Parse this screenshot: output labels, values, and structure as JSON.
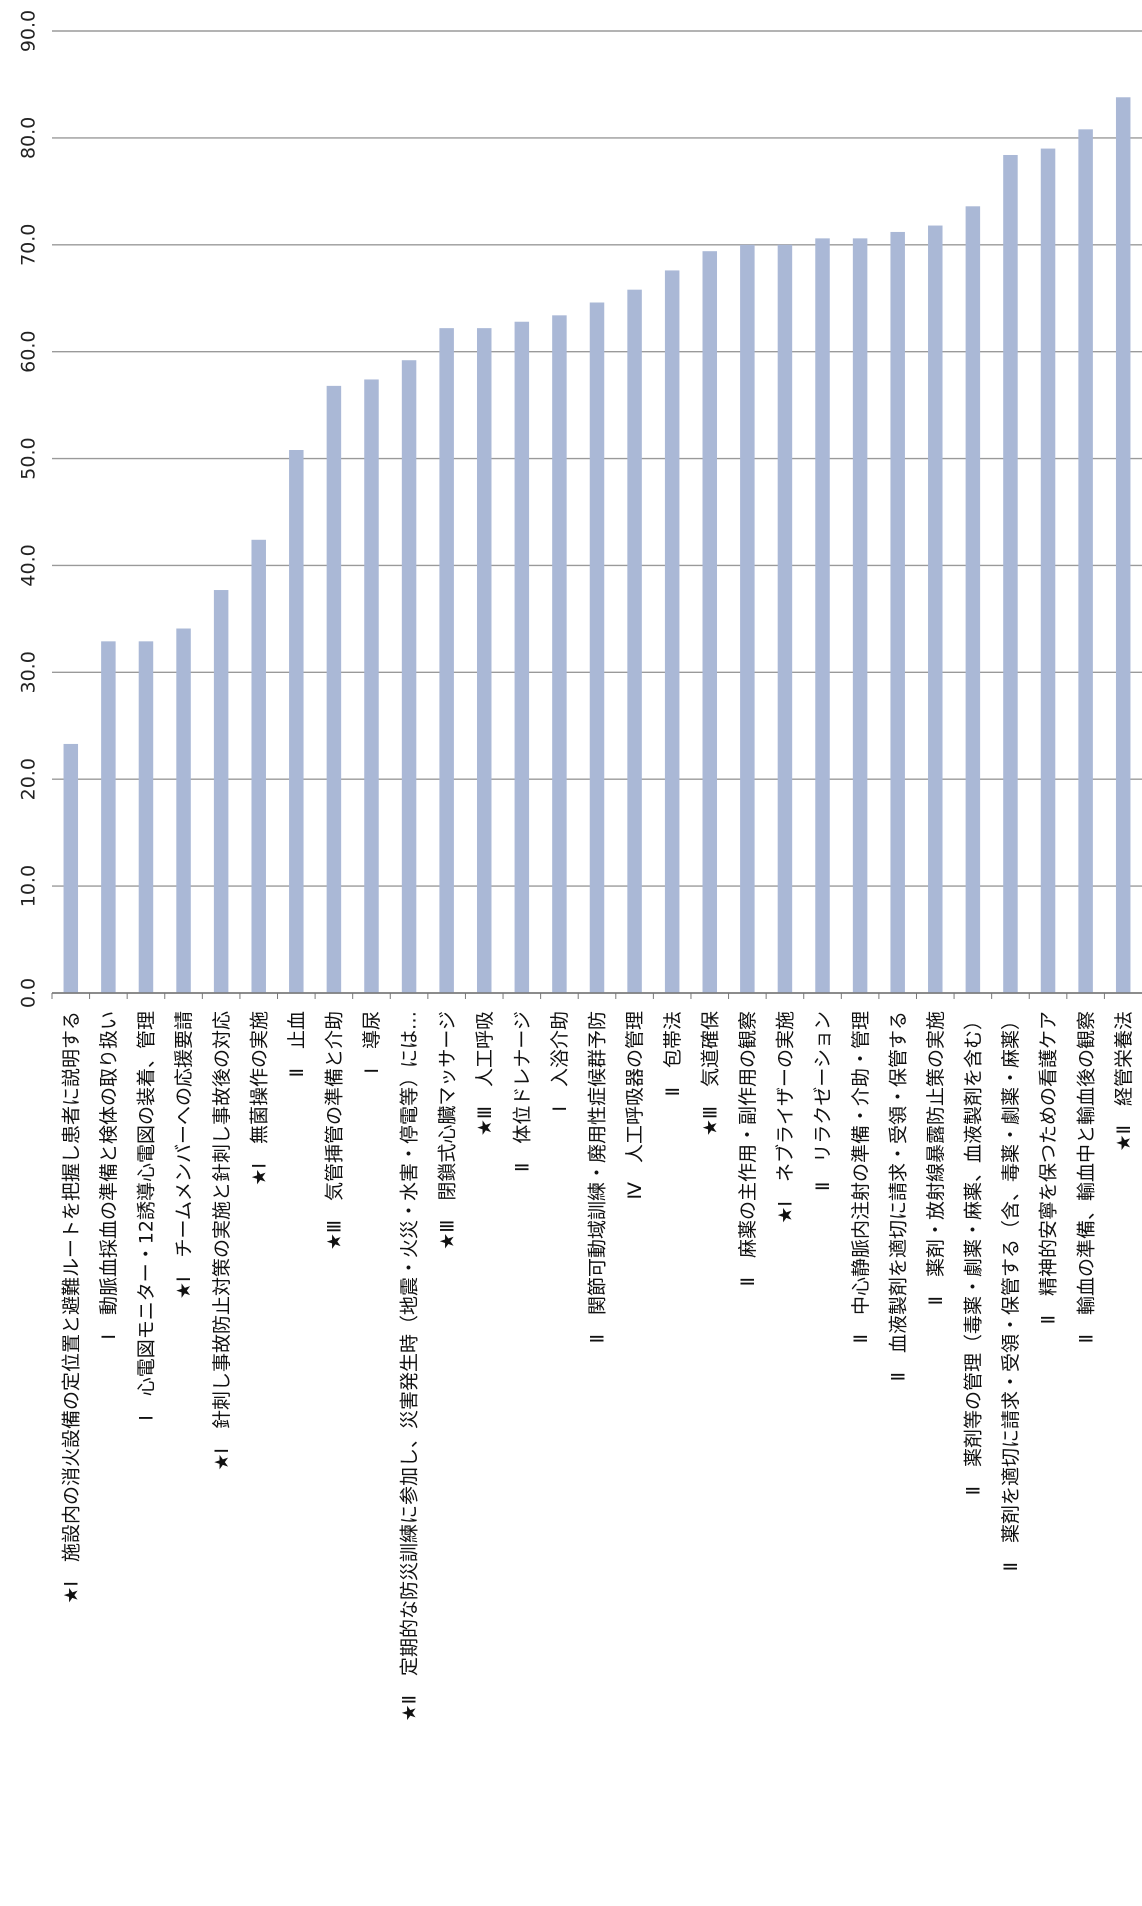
{
  "chart_data": {
    "type": "bar",
    "orientation": "vertical",
    "title": "",
    "xlabel": "",
    "ylabel": "",
    "ylim": [
      0,
      90
    ],
    "yticks": [
      0,
      10,
      20,
      30,
      40,
      50,
      60,
      70,
      80,
      90
    ],
    "ytick_labels": [
      "0.0",
      "10.0",
      "20.0",
      "30.0",
      "40.0",
      "50.0",
      "60.0",
      "70.0",
      "80.0",
      "90.0"
    ],
    "grid": true,
    "bar_color": "#aab8d6",
    "grid_color": "#9a9a9a",
    "categories": [
      "★Ⅰ　施設内の消火設備の定位置と避難ルートを把握し患者に説明する",
      "Ⅰ　動脈血採血の準備と検体の取り扱い",
      "Ⅰ　心電図モニター・12誘導心電図の装着、管理",
      "★Ⅰ　チームメンバーへの応援要請",
      "★Ⅰ　針刺し事故防止対策の実施と針刺し事故後の対応",
      "★Ⅰ　無菌操作の実施",
      "Ⅱ　止血",
      "★Ⅲ　気管挿管の準備と介助",
      "Ⅰ　導尿",
      "★Ⅱ　定期的な防災訓練に参加し、災害発生時（地震・火災・水害・停電等）には…",
      "★Ⅲ　閉鎖式心臓マッサージ",
      "★Ⅲ　人工呼吸",
      "Ⅱ　体位ドレナージ",
      "Ⅰ　入浴介助",
      "Ⅱ　関節可動域訓練・廃用性症候群予防",
      "Ⅳ　人工呼吸器の管理",
      "Ⅱ　包帯法",
      "★Ⅲ　気道確保",
      "Ⅱ　麻薬の主作用・副作用の観察",
      "★Ⅰ　ネブライザーの実施",
      "Ⅱ　リラクゼーション",
      "Ⅱ　中心静脈内注射の準備・介助・管理",
      "Ⅱ　血液製剤を適切に請求・受領・保管する",
      "Ⅱ　薬剤・放射線暴露防止策の実施",
      "Ⅱ　薬剤等の管理（毒薬・劇薬・麻薬、血液製剤を含む）",
      "Ⅱ　薬剤を適切に請求・受領・保管する（含、毒薬・劇薬・麻薬）",
      "Ⅱ　精神的安寧を保つための看護ケア",
      "Ⅱ　輸血の準備、輸血中と輸血後の観察",
      "★Ⅱ　経管栄養法"
    ],
    "values": [
      23.3,
      32.9,
      32.9,
      34.1,
      37.7,
      42.4,
      50.8,
      56.8,
      57.4,
      59.2,
      62.2,
      62.2,
      62.8,
      63.4,
      64.6,
      65.8,
      67.6,
      69.4,
      70.0,
      70.0,
      70.6,
      70.6,
      71.2,
      71.8,
      73.6,
      78.4,
      79.0,
      80.8,
      83.8
    ]
  }
}
